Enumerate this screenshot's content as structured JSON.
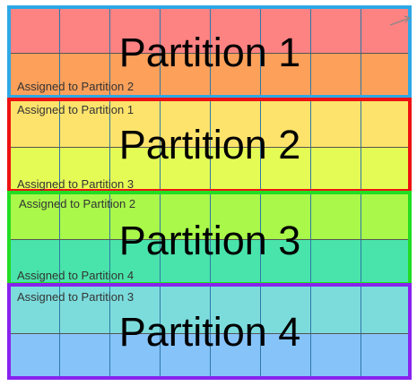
{
  "partitions": [
    {
      "title": "Partition 1",
      "border_color": "#2ea8e6"
    },
    {
      "title": "Partition 2",
      "border_color": "#ee1111"
    },
    {
      "title": "Partition 3",
      "border_color": "#22dd22"
    },
    {
      "title": "Partition 4",
      "border_color": "#8822ee"
    }
  ],
  "band_colors": [
    "#fd8282",
    "#fca05a",
    "#fde36b",
    "#e5fb55",
    "#a9f84a",
    "#49e4ab",
    "#7cdcdc",
    "#86c3f9"
  ],
  "assignment_labels": {
    "p1_to_p2": "Assigned to Partition 2",
    "p2_to_p1": "Assigned to Partition 1",
    "p2_to_p3": "Assigned to Partition 3",
    "p3_to_p2": "Assigned to Partition 2",
    "p3_to_p4": "Assigned to Partition 4",
    "p4_to_p3": "Assigned to Partition 3"
  }
}
